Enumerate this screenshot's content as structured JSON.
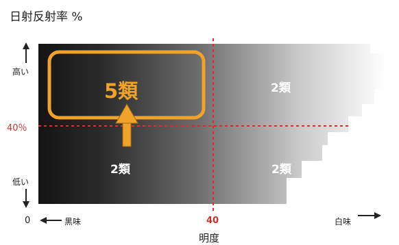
{
  "y_axis": {
    "title": "日射反射率 %",
    "high_label": "高い",
    "low_label": "低い",
    "marker": "40％"
  },
  "x_axis": {
    "title": "明度",
    "zero": "0",
    "dark_label": "黒味",
    "marker": "40",
    "white_label": "白味"
  },
  "quadrants": {
    "top_left": "5類",
    "top_right": "2類",
    "bottom_left": "2類",
    "bottom_right": "2類"
  },
  "colors": {
    "highlight": "#f0a22a",
    "threshold_line": "#d93025",
    "marker_text": "#c8302a"
  }
}
